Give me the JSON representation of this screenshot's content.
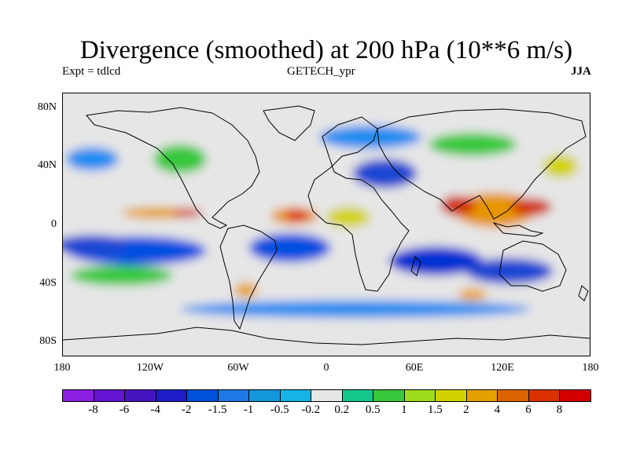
{
  "title": "Divergence (smoothed) at 200 hPa (10**6 m/s)",
  "experiment": "Expt = tdlcd",
  "source": "GETECH_ypr",
  "season": "JJA",
  "map": {
    "lon_range": [
      -180,
      180
    ],
    "lat_range": [
      -90,
      90
    ],
    "y_ticks": [
      {
        "lat": 80,
        "label": "80N"
      },
      {
        "lat": 40,
        "label": "40N"
      },
      {
        "lat": 0,
        "label": "0"
      },
      {
        "lat": -40,
        "label": "40S"
      },
      {
        "lat": -80,
        "label": "80S"
      }
    ],
    "x_ticks": [
      {
        "lon": -180,
        "label": "180"
      },
      {
        "lon": -120,
        "label": "120W"
      },
      {
        "lon": -60,
        "label": "60W"
      },
      {
        "lon": 0,
        "label": "0"
      },
      {
        "lon": 60,
        "label": "60E"
      },
      {
        "lon": 120,
        "label": "120E"
      },
      {
        "lon": 180,
        "label": "180"
      }
    ],
    "background_color": "#e6e6e6",
    "features": [
      {
        "name": "eastern-pacific-convergence-band",
        "color": "#0050e0",
        "lon": -130,
        "lat": -18,
        "rx": 48,
        "ry": 10
      },
      {
        "name": "central-pacific-convergence-band",
        "color": "#1e46d2",
        "lon": -160,
        "lat": -14,
        "rx": 25,
        "ry": 7
      },
      {
        "name": "south-atlantic-convergence",
        "color": "#0050e0",
        "lon": -25,
        "lat": -16,
        "rx": 28,
        "ry": 10
      },
      {
        "name": "indian-ocean-convergence",
        "color": "#0032d2",
        "lon": 75,
        "lat": -25,
        "rx": 32,
        "ry": 10
      },
      {
        "name": "australia-convergence",
        "color": "#1e46d2",
        "lon": 125,
        "lat": -32,
        "rx": 30,
        "ry": 9
      },
      {
        "name": "mediterranean-convergence",
        "color": "#1e46d2",
        "lon": 40,
        "lat": 35,
        "rx": 22,
        "ry": 10
      },
      {
        "name": "southern-ocean-blue-band",
        "color": "#1e8cf0",
        "lon": 20,
        "lat": -58,
        "rx": 120,
        "ry": 6
      },
      {
        "name": "north-pacific-blue",
        "color": "#1e8cf0",
        "lon": -160,
        "lat": 45,
        "rx": 18,
        "ry": 8
      },
      {
        "name": "arctic-blue",
        "color": "#1e8cf0",
        "lon": 30,
        "lat": 60,
        "rx": 35,
        "ry": 8
      },
      {
        "name": "south-pacific-green",
        "color": "#39c83c",
        "lon": -140,
        "lat": -35,
        "rx": 35,
        "ry": 7
      },
      {
        "name": "asian-monsoon-divergence",
        "color": "#e69600",
        "lon": 115,
        "lat": 10,
        "rx": 28,
        "ry": 12
      },
      {
        "name": "bay-of-bengal-maximum",
        "color": "#d23200",
        "lon": 90,
        "lat": 13,
        "rx": 12,
        "ry": 7
      },
      {
        "name": "western-pacific-maximum",
        "color": "#d23200",
        "lon": 140,
        "lat": 12,
        "rx": 14,
        "ry": 6
      },
      {
        "name": "itcz-east-pacific-divergence",
        "color": "#e6a000",
        "lon": -115,
        "lat": 8,
        "rx": 25,
        "ry": 4
      },
      {
        "name": "central-america-maximum",
        "color": "#d23200",
        "lon": -95,
        "lat": 8,
        "rx": 10,
        "ry": 3
      },
      {
        "name": "west-africa-divergence",
        "color": "#e69600",
        "lon": -22,
        "lat": 6,
        "rx": 16,
        "ry": 6
      },
      {
        "name": "west-africa-maximum",
        "color": "#dc1e00",
        "lon": -20,
        "lat": 6,
        "rx": 8,
        "ry": 4
      },
      {
        "name": "africa-yellow-band",
        "color": "#d2d200",
        "lon": 15,
        "lat": 5,
        "rx": 15,
        "ry": 7
      },
      {
        "name": "north-america-green",
        "color": "#39c83c",
        "lon": -100,
        "lat": 45,
        "rx": 18,
        "ry": 10
      },
      {
        "name": "siberia-green",
        "color": "#39c83c",
        "lon": 100,
        "lat": 55,
        "rx": 30,
        "ry": 8
      },
      {
        "name": "north-pacific-yellow",
        "color": "#d2d200",
        "lon": 160,
        "lat": 40,
        "rx": 12,
        "ry": 8
      },
      {
        "name": "south-atlantic-orange",
        "color": "#e6a000",
        "lon": -55,
        "lat": -45,
        "rx": 8,
        "ry": 5
      },
      {
        "name": "southern-indian-orange",
        "color": "#e6a000",
        "lon": 100,
        "lat": -48,
        "rx": 10,
        "ry": 4
      }
    ],
    "coastline_color": "#000000"
  },
  "colorbar": {
    "colors": [
      "#8c1ee0",
      "#6414d2",
      "#4614be",
      "#1e1ec8",
      "#0050dc",
      "#1e78e6",
      "#1496dc",
      "#14b4e6",
      "#e6e6e6",
      "#14c88c",
      "#39c83c",
      "#a0dc1e",
      "#d2d200",
      "#e6a000",
      "#dc6400",
      "#dc3200",
      "#d20000"
    ],
    "labels": [
      "-8",
      "-6",
      "-4",
      "-2",
      "-1.5",
      "-1",
      "-0.5",
      "-0.2",
      "0.2",
      "0.5",
      "1",
      "1.5",
      "2",
      "4",
      "6",
      "8"
    ]
  }
}
